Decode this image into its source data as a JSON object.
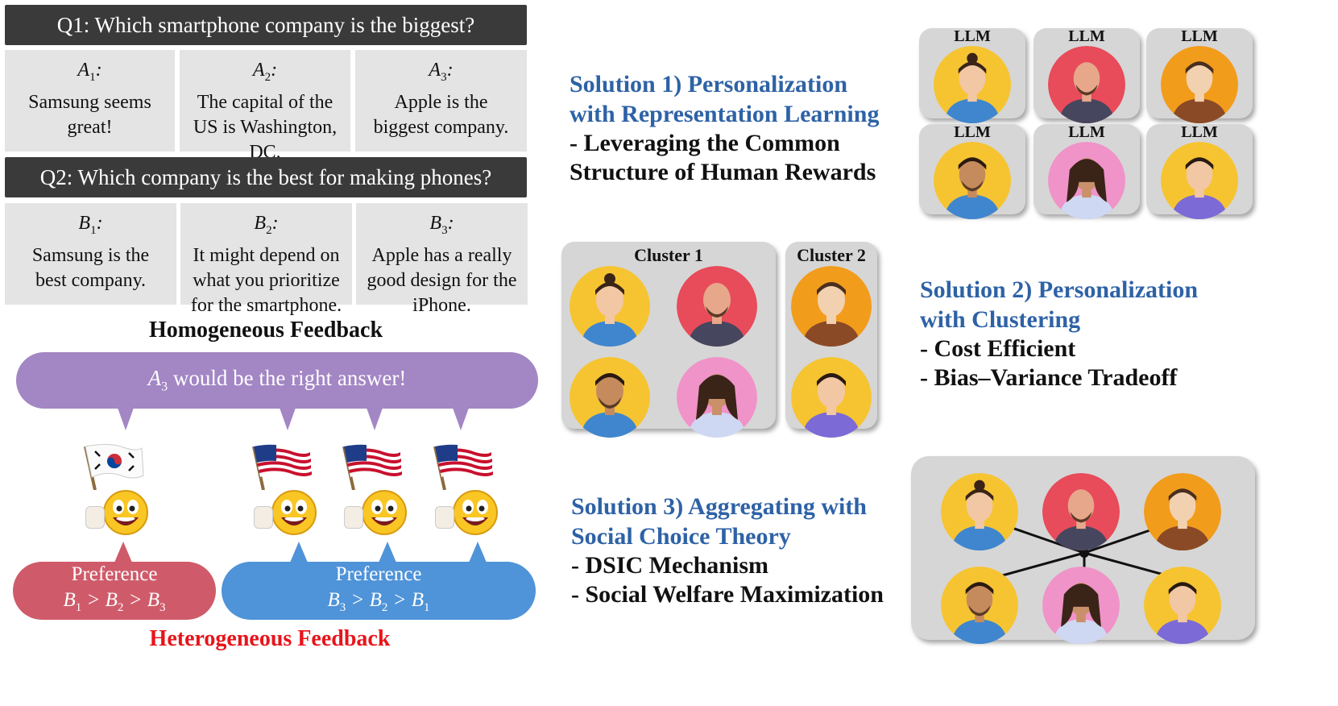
{
  "q1": {
    "question": "Q1: Which smartphone company is the biggest?",
    "answers": [
      {
        "label": "A",
        "sub": "1",
        "suffix": ":",
        "text": "Samsung seems great!"
      },
      {
        "label": "A",
        "sub": "2",
        "suffix": ":",
        "text": "The capital of the US is Washington, DC."
      },
      {
        "label": "A",
        "sub": "3",
        "suffix": ":",
        "text": "Apple is the biggest company."
      }
    ]
  },
  "q2": {
    "question": "Q2: Which company is the best for making phones?",
    "answers": [
      {
        "label": "B",
        "sub": "1",
        "suffix": ":",
        "text": "Samsung is the best company."
      },
      {
        "label": "B",
        "sub": "2",
        "suffix": ":",
        "text": "It might depend on what you prioritize for the smartphone."
      },
      {
        "label": "B",
        "sub": "3",
        "suffix": ":",
        "text": "Apple has a really good design for the iPhone."
      }
    ]
  },
  "homogeneous": {
    "title": "Homogeneous Feedback",
    "bubble_label": "A",
    "bubble_sub": "3",
    "bubble_text": " would be the right answer!"
  },
  "preferences": {
    "left": {
      "label": "Preference",
      "order": "B1 > B2 > B3"
    },
    "right": {
      "label": "Preference",
      "order": "B3 > B2 > B1"
    }
  },
  "heterogeneous": {
    "title": "Heterogeneous Feedback"
  },
  "solution1": {
    "title_line1": "Solution 1) Personalization",
    "title_line2": "with Representation Learning",
    "bullet_line1": "- Leveraging the Common",
    "bullet_line2": "Structure of Human Rewards"
  },
  "solution2": {
    "title_line1": "Solution 2) Personalization",
    "title_line2": "with Clustering",
    "bullets": [
      "-  Cost Efficient",
      "-  Bias–Variance Tradeoff"
    ]
  },
  "solution3": {
    "title_line1": "Solution 3) Aggregating with",
    "title_line2": "Social Choice Theory",
    "bullets": [
      "- DSIC Mechanism",
      "- Social Welfare Maximization"
    ]
  },
  "llm_label": "LLM",
  "clusters": [
    "Cluster 1",
    "Cluster 2"
  ],
  "colors": {
    "question_bar": "#3a3a3a",
    "answer_box": "#e4e4e4",
    "purple": "#a386c4",
    "red": "#cf5b6a",
    "blue": "#4f93d9",
    "solution_title": "#2e62a6",
    "heterogeneous_title": "#e8141b"
  },
  "icons": {
    "korea_flag": "korea-flag-icon",
    "us_flag": "us-flag-icon",
    "face": "grinning-face-icon",
    "person": "person-avatar-icon"
  }
}
